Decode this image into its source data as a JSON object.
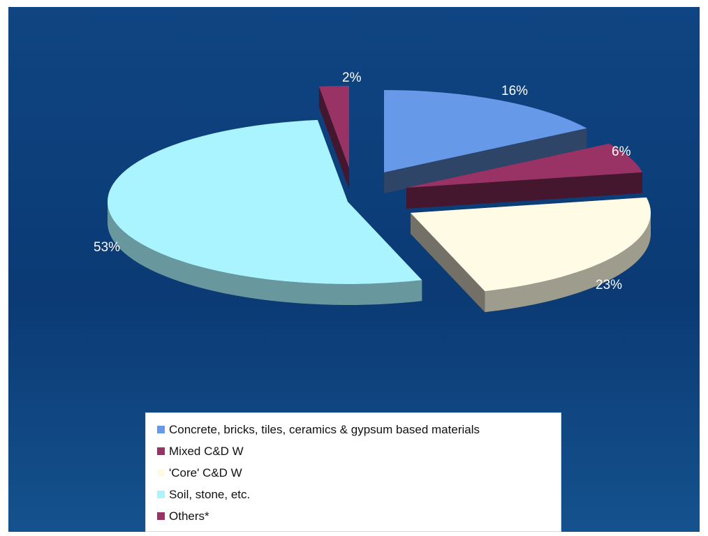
{
  "chart_data": {
    "type": "pie",
    "three_d": true,
    "exploded": true,
    "title": "",
    "labels": [
      "Concrete, bricks, tiles, ceramics & gypsum based materials",
      "Mixed C&D W",
      "'Core' C&D W",
      "Soil, stone, etc.",
      "Others*"
    ],
    "values": [
      16,
      6,
      23,
      53,
      2
    ],
    "value_labels": [
      "16%",
      "6%",
      "23%",
      "53%",
      "2%"
    ],
    "colors": [
      "#6699e8",
      "#993366",
      "#fffbe4",
      "#aaf4ff",
      "#993366"
    ],
    "legend_position": "bottom",
    "background_color": "#0d3f7a"
  }
}
